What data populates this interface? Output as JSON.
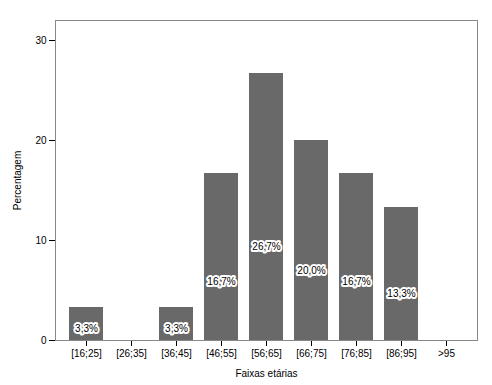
{
  "chart_data": {
    "type": "bar",
    "categories": [
      "[16;25]",
      "[26;35]",
      "[36;45]",
      "[46;55]",
      "[56;65]",
      "[66;75]",
      "[76;85]",
      "[86;95]",
      ">95"
    ],
    "values": [
      3.3,
      0,
      3.3,
      16.7,
      26.7,
      20.0,
      16.7,
      13.3,
      0
    ],
    "value_labels": [
      "3,3%",
      null,
      "3,3%",
      "16,7%",
      "26,7%",
      "20,0%",
      "16,7%",
      "13,3%",
      null
    ],
    "data_labels": true,
    "color": "#696969",
    "xlabel": "Faixas etárias",
    "ylabel": "Percentagem",
    "ylim": [
      0,
      32
    ],
    "yticks": [
      0,
      10,
      20,
      30
    ],
    "grid": false
  }
}
